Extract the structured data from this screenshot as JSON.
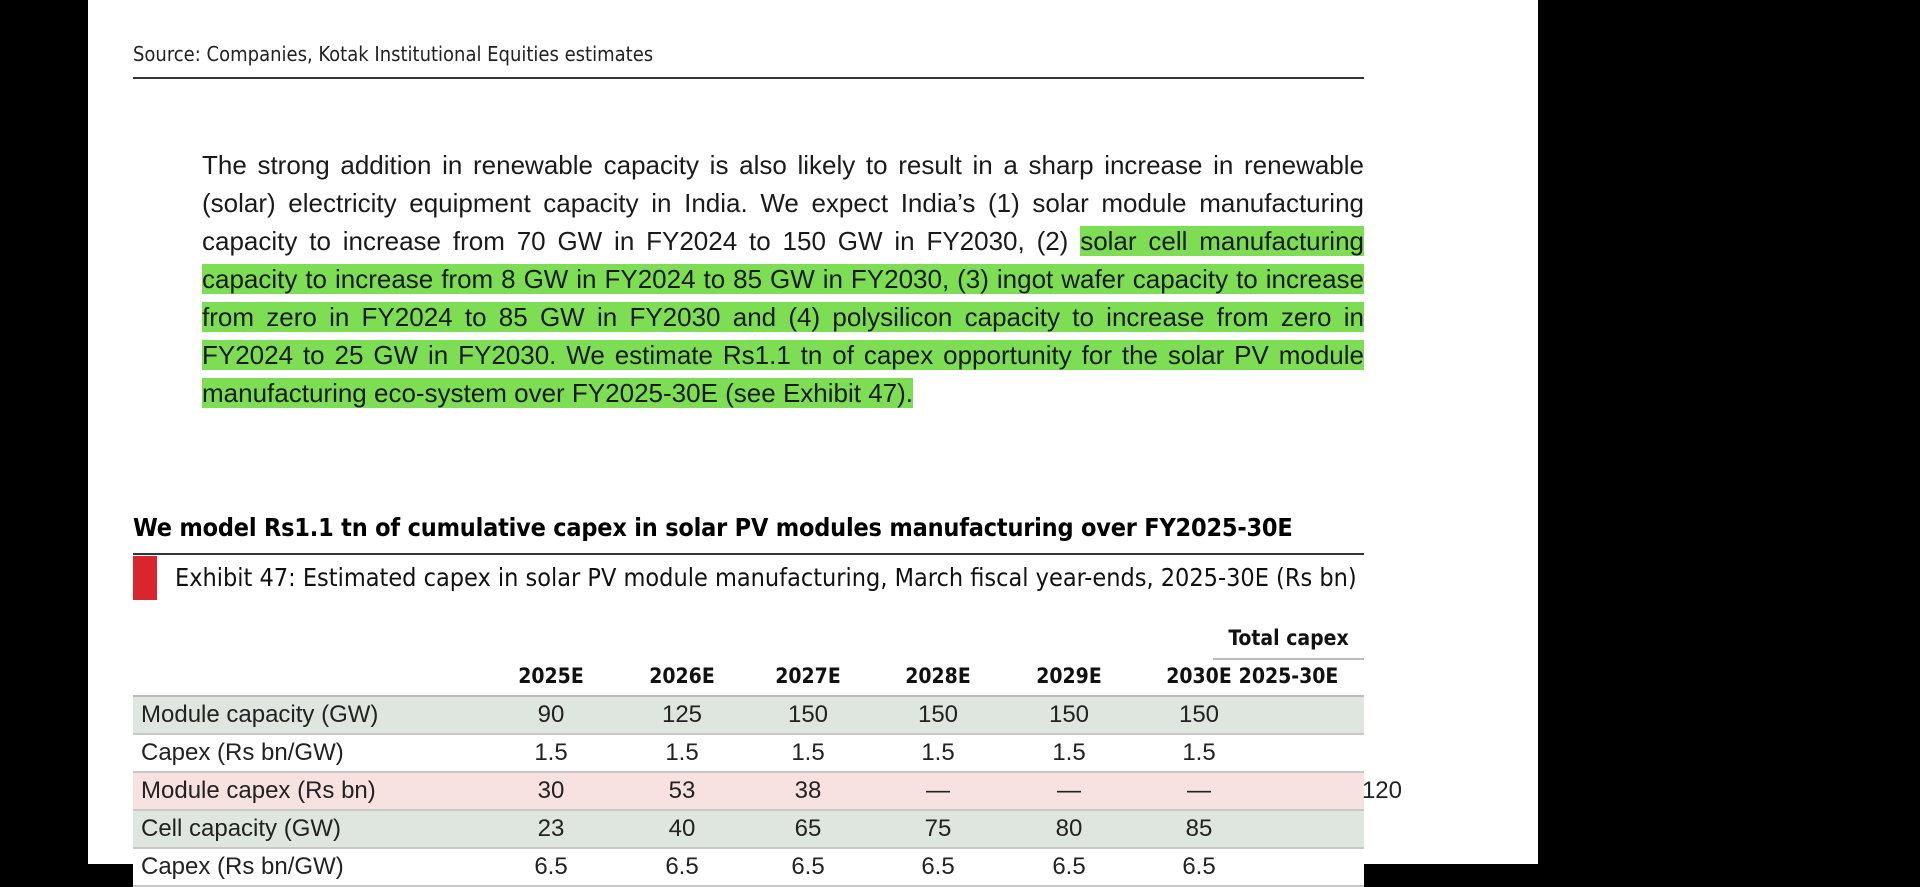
{
  "source": "Source: Companies, Kotak Institutional Equities estimates",
  "paragraph": {
    "plain": "The strong addition in renewable capacity is also likely to result in a sharp increase in renewable (solar) electricity equipment capacity in India. We expect India’s (1) solar module manufacturing capacity to increase from 70 GW in FY2024 to 150 GW in FY2030, (2) ",
    "highlighted": "solar cell manufacturing capacity to increase from 8 GW in FY2024 to 85 GW in FY2030, (3) ingot wafer capacity to increase from zero in FY2024 to 85 GW in FY2030 and (4) polysilicon capacity to increase from zero in FY2024 to 25 GW in FY2030. We estimate Rs1.1 tn of capex opportunity for the solar PV module manufacturing eco-system over FY2025-30E (see Exhibit 47).",
    "highlight_color": "#7dde54"
  },
  "section_title": "We model Rs1.1 tn of cumulative capex in solar PV modules manufacturing over FY2025-30E",
  "exhibit": {
    "marker_color": "#d9262c",
    "title": "Exhibit 47: Estimated capex in solar PV module manufacturing, March fiscal year-ends, 2025-30E (Rs bn)"
  },
  "table": {
    "total_header_top": "Total capex",
    "total_header_bottom": "2025-30E",
    "columns": [
      "2025E",
      "2026E",
      "2027E",
      "2028E",
      "2029E",
      "2030E"
    ],
    "rows": [
      {
        "label": "Module capacity (GW)",
        "values": [
          "90",
          "125",
          "150",
          "150",
          "150",
          "150"
        ],
        "total": "",
        "style": "green"
      },
      {
        "label": "Capex (Rs bn/GW)",
        "values": [
          "1.5",
          "1.5",
          "1.5",
          "1.5",
          "1.5",
          "1.5"
        ],
        "total": "",
        "style": "white"
      },
      {
        "label": "Module capex (Rs bn)",
        "values": [
          "30",
          "53",
          "38",
          "—",
          "—",
          "—"
        ],
        "total": "120",
        "style": "pink"
      },
      {
        "label": "Cell capacity (GW)",
        "values": [
          "23",
          "40",
          "65",
          "75",
          "80",
          "85"
        ],
        "total": "",
        "style": "green"
      },
      {
        "label": "Capex (Rs bn/GW)",
        "values": [
          "6.5",
          "6.5",
          "6.5",
          "6.5",
          "6.5",
          "6.5"
        ],
        "total": "",
        "style": "white"
      }
    ]
  }
}
